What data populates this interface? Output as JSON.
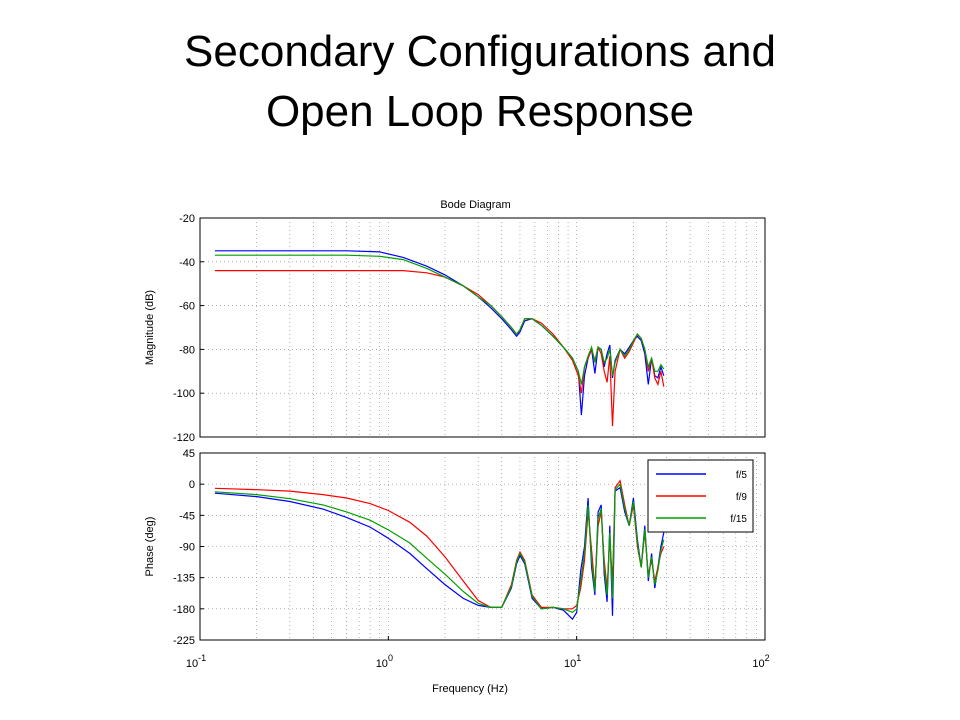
{
  "slide": {
    "title_line1": "Secondary Configurations and",
    "title_line2": "Open Loop Response"
  },
  "chart_data": [
    {
      "type": "line",
      "panel": "magnitude",
      "title": "Bode Diagram",
      "ylabel": "Magnitude (dB)",
      "xlabel": "",
      "xscale": "log",
      "xlim": [
        0.1,
        100
      ],
      "ylim": [
        -120,
        -20
      ],
      "yticks": [
        -20,
        -40,
        -60,
        -80,
        -100,
        -120
      ],
      "grid": true,
      "series": [
        {
          "name": "f/5",
          "color": "#0000ff",
          "x": [
            0.12,
            0.3,
            0.6,
            0.9,
            1.2,
            1.6,
            2,
            2.5,
            3,
            3.5,
            4,
            4.5,
            4.8,
            5,
            5.3,
            5.8,
            6.5,
            7.5,
            8.5,
            9.5,
            10.2,
            10.6,
            11,
            11.5,
            12,
            12.5,
            13,
            13.5,
            14,
            14.5,
            15,
            15.5,
            16,
            17,
            18,
            19,
            20,
            21,
            22,
            23,
            24,
            25,
            26,
            27,
            28,
            29
          ],
          "y": [
            -35,
            -35,
            -35,
            -35.5,
            -38,
            -42,
            -46,
            -51,
            -56,
            -61,
            -66,
            -71,
            -74,
            -72,
            -67,
            -66,
            -69,
            -74,
            -79,
            -84,
            -90,
            -110,
            -92,
            -84,
            -80,
            -91,
            -79,
            -80,
            -88,
            -82,
            -78,
            -93,
            -85,
            -80,
            -82,
            -79,
            -76,
            -74,
            -76,
            -82,
            -96,
            -84,
            -92,
            -93,
            -88,
            -92
          ]
        },
        {
          "name": "f/9",
          "color": "#ff0000",
          "x": [
            0.12,
            0.3,
            0.6,
            0.9,
            1.2,
            1.6,
            2,
            2.5,
            3,
            3.5,
            4,
            4.5,
            4.8,
            5,
            5.3,
            5.8,
            6.5,
            7.5,
            8.5,
            9.5,
            10.2,
            10.6,
            11,
            11.5,
            12,
            12.5,
            13,
            13.5,
            14,
            14.5,
            15,
            15.5,
            16,
            17,
            18,
            19,
            20,
            21,
            22,
            23,
            24,
            25,
            26,
            27,
            28,
            29
          ],
          "y": [
            -44,
            -44,
            -44,
            -44,
            -44,
            -45,
            -47,
            -51,
            -55,
            -60,
            -65,
            -70,
            -73,
            -71,
            -66,
            -66,
            -68,
            -73,
            -79,
            -85,
            -92,
            -100,
            -88,
            -84,
            -80,
            -85,
            -79,
            -82,
            -90,
            -95,
            -83,
            -115,
            -90,
            -80,
            -84,
            -81,
            -77,
            -73,
            -75,
            -80,
            -90,
            -84,
            -93,
            -96,
            -90,
            -97
          ]
        },
        {
          "name": "f/15",
          "color": "#00a000",
          "x": [
            0.12,
            0.3,
            0.6,
            0.9,
            1.2,
            1.6,
            2,
            2.5,
            3,
            3.5,
            4,
            4.5,
            4.8,
            5,
            5.3,
            5.8,
            6.5,
            7.5,
            8.5,
            9.5,
            10.2,
            10.6,
            11,
            11.5,
            12,
            12.5,
            13,
            13.5,
            14,
            14.5,
            15,
            15.5,
            16,
            17,
            18,
            19,
            20,
            21,
            22,
            23,
            24,
            25,
            26,
            27,
            28,
            29
          ],
          "y": [
            -37,
            -37,
            -37,
            -37.5,
            -39,
            -43,
            -47,
            -51,
            -56,
            -60,
            -65,
            -70,
            -73,
            -71,
            -66,
            -66,
            -69,
            -74,
            -79,
            -84,
            -90,
            -96,
            -88,
            -83,
            -79,
            -86,
            -79,
            -80,
            -86,
            -84,
            -80,
            -92,
            -86,
            -80,
            -83,
            -80,
            -76,
            -73,
            -75,
            -80,
            -88,
            -84,
            -90,
            -90,
            -87,
            -89
          ]
        }
      ]
    },
    {
      "type": "line",
      "panel": "phase",
      "ylabel": "Phase (deg)",
      "xlabel": "Frequency (Hz)",
      "xscale": "log",
      "xlim": [
        0.1,
        100
      ],
      "ylim": [
        -225,
        45
      ],
      "yticks": [
        45,
        0,
        -45,
        -90,
        -135,
        -180,
        -225
      ],
      "xticks": [
        0.1,
        1,
        10,
        100
      ],
      "xtick_labels": [
        {
          "base": "10",
          "exp": "-1"
        },
        {
          "base": "10",
          "exp": "0"
        },
        {
          "base": "10",
          "exp": "1"
        },
        {
          "base": "10",
          "exp": "2"
        }
      ],
      "grid": true,
      "legend": {
        "placement": "top-right",
        "entries": [
          "f/5",
          "f/9",
          "f/15"
        ]
      },
      "series": [
        {
          "name": "f/5",
          "color": "#0000ff",
          "x": [
            0.12,
            0.2,
            0.3,
            0.45,
            0.6,
            0.8,
            1,
            1.3,
            1.6,
            2,
            2.5,
            3,
            3.5,
            4,
            4.5,
            4.8,
            5,
            5.3,
            5.8,
            6.5,
            7.5,
            8.5,
            9.5,
            10,
            10.5,
            11,
            11.5,
            12,
            12.5,
            13,
            13.5,
            14,
            14.5,
            15,
            15.5,
            16,
            17,
            18,
            19,
            20,
            21,
            22,
            23,
            24,
            25,
            26,
            27,
            28,
            29
          ],
          "y": [
            -13,
            -18,
            -25,
            -36,
            -48,
            -62,
            -78,
            -100,
            -122,
            -145,
            -165,
            -175,
            -178,
            -178,
            -150,
            -115,
            -103,
            -115,
            -165,
            -180,
            -178,
            -182,
            -195,
            -185,
            -125,
            -90,
            -20,
            -120,
            -160,
            -40,
            -30,
            -130,
            -170,
            -60,
            -190,
            -10,
            -5,
            -40,
            -60,
            -20,
            -80,
            -120,
            -60,
            -140,
            -100,
            -150,
            -120,
            -90,
            -70
          ]
        },
        {
          "name": "f/9",
          "color": "#ff0000",
          "x": [
            0.12,
            0.2,
            0.3,
            0.45,
            0.6,
            0.8,
            1,
            1.3,
            1.6,
            2,
            2.5,
            3,
            3.5,
            4,
            4.5,
            4.8,
            5,
            5.3,
            5.8,
            6.5,
            7.5,
            8.5,
            9.5,
            10,
            10.5,
            11,
            11.5,
            12,
            12.5,
            13,
            13.5,
            14,
            14.5,
            15,
            15.5,
            16,
            17,
            18,
            19,
            20,
            21,
            22,
            23,
            24,
            25,
            26,
            27,
            28,
            29
          ],
          "y": [
            -6,
            -8,
            -10,
            -15,
            -20,
            -28,
            -38,
            -55,
            -75,
            -105,
            -140,
            -168,
            -178,
            -178,
            -145,
            -110,
            -98,
            -110,
            -160,
            -178,
            -178,
            -180,
            -180,
            -175,
            -150,
            -110,
            -40,
            -95,
            -150,
            -60,
            -40,
            -110,
            -150,
            -80,
            -140,
            -5,
            5,
            -30,
            -60,
            -30,
            -90,
            -120,
            -70,
            -130,
            -110,
            -140,
            -120,
            -100,
            -90
          ]
        },
        {
          "name": "f/15",
          "color": "#00a000",
          "x": [
            0.12,
            0.2,
            0.3,
            0.45,
            0.6,
            0.8,
            1,
            1.3,
            1.6,
            2,
            2.5,
            3,
            3.5,
            4,
            4.5,
            4.8,
            5,
            5.3,
            5.8,
            6.5,
            7.5,
            8.5,
            9.5,
            10,
            10.5,
            11,
            11.5,
            12,
            12.5,
            13,
            13.5,
            14,
            14.5,
            15,
            15.5,
            16,
            17,
            18,
            19,
            20,
            21,
            22,
            23,
            24,
            25,
            26,
            27,
            28,
            29
          ],
          "y": [
            -11,
            -15,
            -21,
            -30,
            -40,
            -52,
            -66,
            -85,
            -107,
            -130,
            -155,
            -172,
            -178,
            -178,
            -148,
            -112,
            -100,
            -112,
            -162,
            -180,
            -178,
            -180,
            -185,
            -180,
            -140,
            -100,
            -30,
            -110,
            -155,
            -50,
            -35,
            -120,
            -160,
            -70,
            -165,
            -8,
            0,
            -35,
            -60,
            -25,
            -85,
            -120,
            -65,
            -135,
            -105,
            -145,
            -125,
            -95,
            -80
          ]
        }
      ]
    }
  ]
}
